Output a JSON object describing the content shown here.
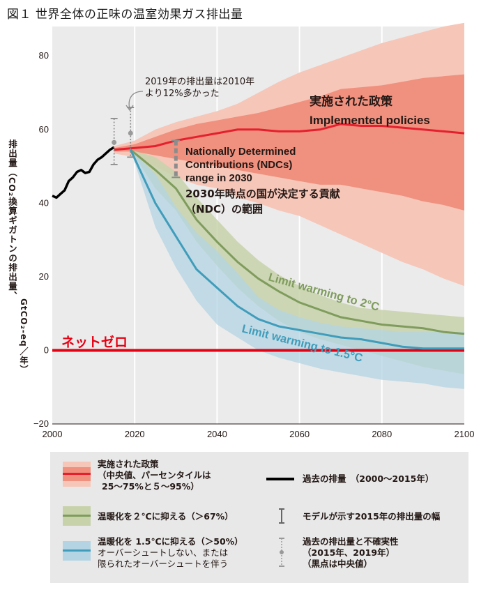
{
  "chart_data": {
    "type": "area",
    "title": "図１ 世界全体の正味の温室効果ガス排出量",
    "ylabel_main": "排出量（CO₂換算ギガトンの排出量、",
    "ylabel_unit": "GtCO₂-eq／年）",
    "xlim": [
      2000,
      2100
    ],
    "ylim": [
      -20,
      88
    ],
    "x_ticks": [
      "2000",
      "2020",
      "2040",
      "2060",
      "2080",
      "2100"
    ],
    "y_ticks": [
      "80",
      "60",
      "40",
      "20",
      "0",
      "−20"
    ],
    "historical": {
      "x": [
        2000,
        2001,
        2002,
        2003,
        2004,
        2005,
        2006,
        2007,
        2008,
        2009,
        2010,
        2011,
        2012,
        2013,
        2014,
        2015
      ],
      "y": [
        42,
        41.5,
        42.5,
        43.5,
        46,
        47,
        48.5,
        49,
        48.2,
        48.5,
        50.5,
        51.8,
        52.5,
        53.5,
        54.5,
        55.2
      ]
    },
    "implemented_policies": {
      "x": [
        2015,
        2020,
        2025,
        2030,
        2035,
        2040,
        2045,
        2050,
        2055,
        2060,
        2065,
        2070,
        2075,
        2080,
        2085,
        2090,
        2095,
        2100
      ],
      "median": [
        54.5,
        55,
        55.5,
        57,
        58,
        59,
        60,
        60,
        59.5,
        59.5,
        60,
        61.5,
        61,
        61,
        60.5,
        60,
        59.5,
        59
      ],
      "p25": [
        54,
        54,
        53,
        52,
        51,
        50,
        49,
        48,
        47,
        46,
        45,
        45,
        44,
        43,
        42,
        40.5,
        39.5,
        38
      ],
      "p75": [
        55,
        56,
        58,
        60,
        61.5,
        62.5,
        63.5,
        64.5,
        66,
        67.5,
        69,
        71,
        71.5,
        72,
        73,
        74,
        74.5,
        75
      ],
      "p5": [
        53.5,
        52.5,
        50,
        47,
        45,
        44,
        41.5,
        40,
        38,
        36.5,
        34,
        31.5,
        29,
        26.5,
        24,
        22,
        19.5,
        17.5
      ],
      "p95": [
        55.5,
        57,
        60,
        62,
        63.5,
        65,
        67,
        70,
        73,
        75.5,
        77.5,
        79.5,
        81.5,
        83.5,
        85,
        86.5,
        88,
        89
      ]
    },
    "warming_2c": {
      "x": [
        2019,
        2025,
        2030,
        2035,
        2040,
        2045,
        2050,
        2055,
        2060,
        2065,
        2070,
        2075,
        2080,
        2085,
        2090,
        2095,
        2100
      ],
      "median": [
        54.5,
        49,
        44,
        35.5,
        29.5,
        24,
        19.5,
        16,
        13,
        11,
        9,
        8,
        7,
        6.5,
        6,
        5,
        4.5
      ],
      "low": [
        54.5,
        44,
        38,
        29.5,
        23,
        17,
        12,
        8,
        5,
        3,
        1.5,
        0,
        -1.5,
        -3,
        -4.5,
        -5.5,
        -6.5
      ],
      "high": [
        54.5,
        52.5,
        48.5,
        41.5,
        35.5,
        29.5,
        24.5,
        20.5,
        17.5,
        15,
        13,
        11.5,
        11,
        10.5,
        10,
        9.5,
        9
      ]
    },
    "warming_1_5c": {
      "x": [
        2019,
        2025,
        2030,
        2035,
        2040,
        2045,
        2050,
        2055,
        2060,
        2065,
        2070,
        2075,
        2080,
        2085,
        2090,
        2095,
        2100
      ],
      "median": [
        54.5,
        40,
        31,
        22,
        17,
        12,
        8.5,
        6.5,
        5.5,
        4.5,
        3.5,
        3,
        2,
        1,
        0.5,
        0.5,
        0.5
      ],
      "low": [
        54.5,
        33.5,
        22.5,
        13.5,
        7,
        3.5,
        0,
        -2,
        -3.5,
        -5,
        -6,
        -7,
        -8,
        -8.5,
        -9,
        -10,
        -10.5
      ],
      "high": [
        54.5,
        48,
        39,
        32,
        27,
        21,
        14.5,
        11,
        9,
        7.5,
        6.5,
        6,
        5.5,
        5,
        5,
        5,
        5
      ]
    },
    "ndc_range_2030": {
      "x": 2030,
      "low": 47,
      "high": 57,
      "center": 52
    },
    "model_range_2015": {
      "x": 2015,
      "low": 50.5,
      "high": 63,
      "center": 56.5
    },
    "uncertainty_2019": {
      "x": 2019,
      "low": 52.5,
      "high": 66,
      "center": 59
    },
    "net_zero": {
      "y": 0,
      "label": "ネットゼロ"
    },
    "annotations": {
      "note_2019_line1": "2019年の排出量は2010年",
      "note_2019_line2": "より12%多かった",
      "implemented_jp": "実施された政策",
      "implemented_en": "Implemented policies",
      "ndc_en_1": "Nationally Determined",
      "ndc_en_2": "Contributions (NDCs)",
      "ndc_en_3": "range in 2030",
      "ndc_jp_1": "2030年時点の国が決定する貢献",
      "ndc_jp_2": "（NDC）の範囲",
      "limit_2c": "Limit warming to 2°C",
      "limit_15c": "Limit warming to 1.5°C"
    }
  },
  "colors": {
    "implemented_outer": "#f6c6b8",
    "implemented_inner": "#f0907e",
    "implemented_line": "#e5202e",
    "c2_band": "#c7d2aa",
    "c2_line": "#7f9c5d",
    "c15_band": "#b4d4e3",
    "c15_line": "#3f9dbb",
    "net_zero": "#e60012",
    "historical": "#000000",
    "plot_bg": "#ebebeb",
    "grid": "#ffffff"
  },
  "legend": {
    "implemented_line1": "実施された政策",
    "implemented_line2": "（中央値、パーセンタイルは",
    "implemented_line3": "25～75%と５～95%）",
    "c2": "温暖化を２℃に抑える（＞67%）",
    "c15_line1": "温暖化を 1.5℃に抑える（＞50%）",
    "c15_line2": "オーバーシュートしない、または",
    "c15_line3": "限られたオーバーシュートを伴う",
    "historical": "過去の排量　（2000～2015年）",
    "model_range": "モデルが示す2015年の排出量の幅",
    "uncertainty_line1": "過去の排出量と不確実性",
    "uncertainty_line2": "（2015年、2019年）",
    "uncertainty_line3": "（黒点は中央値）"
  }
}
